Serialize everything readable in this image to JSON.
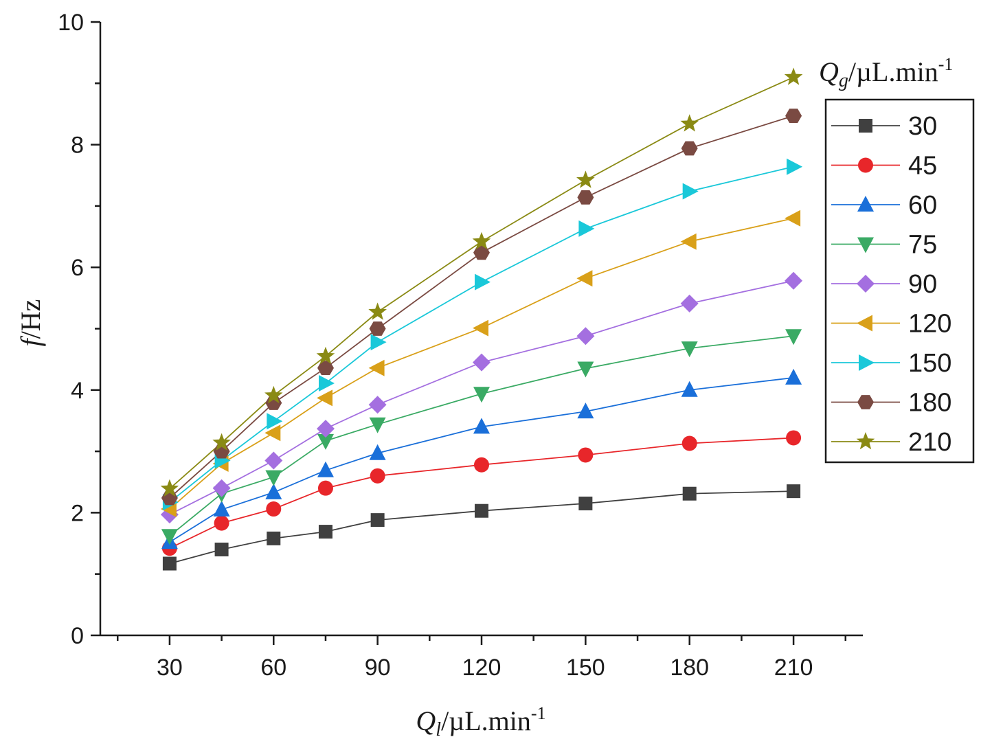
{
  "chart_data": {
    "type": "line",
    "title": "",
    "x": [
      30,
      45,
      60,
      75,
      90,
      120,
      150,
      180,
      210
    ],
    "xlim": [
      10,
      230
    ],
    "ylim": [
      0,
      10
    ],
    "x_ticks": [
      "30",
      "60",
      "90",
      "120",
      "150",
      "180",
      "210"
    ],
    "y_ticks": [
      "0",
      "2",
      "4",
      "6",
      "8",
      "10"
    ],
    "xlabel": {
      "main": "Q",
      "sub": "l",
      "unit": "/µL.min",
      "sup": "-1"
    },
    "ylabel": {
      "main": "f",
      "unit": "/Hz"
    },
    "legend": {
      "main": "Q",
      "sub": "g",
      "unit": "/µL.min",
      "sup": "-1",
      "position": "right"
    },
    "grid": false,
    "series": [
      {
        "name": "30",
        "marker": "square",
        "color": "#404040",
        "values": [
          1.17,
          1.4,
          1.58,
          1.69,
          1.88,
          2.03,
          2.15,
          2.31,
          2.35
        ]
      },
      {
        "name": "45",
        "marker": "circle",
        "color": "#e8262a",
        "values": [
          1.42,
          1.83,
          2.06,
          2.4,
          2.6,
          2.78,
          2.94,
          3.13,
          3.22
        ]
      },
      {
        "name": "60",
        "marker": "triangle-up",
        "color": "#1a6fd9",
        "values": [
          1.52,
          2.05,
          2.33,
          2.69,
          2.97,
          3.4,
          3.65,
          4.0,
          4.2
        ]
      },
      {
        "name": "75",
        "marker": "triangle-down",
        "color": "#3aaa64",
        "values": [
          1.62,
          2.31,
          2.58,
          3.17,
          3.44,
          3.94,
          4.35,
          4.68,
          4.88
        ]
      },
      {
        "name": "90",
        "marker": "diamond",
        "color": "#a46fe0",
        "values": [
          1.97,
          2.4,
          2.85,
          3.37,
          3.76,
          4.45,
          4.88,
          5.41,
          5.78
        ]
      },
      {
        "name": "120",
        "marker": "triangle-left",
        "color": "#d9a019",
        "values": [
          2.06,
          2.8,
          3.3,
          3.87,
          4.36,
          5.01,
          5.82,
          6.42,
          6.8
        ]
      },
      {
        "name": "150",
        "marker": "triangle-right",
        "color": "#1ac8d9",
        "values": [
          2.17,
          2.85,
          3.49,
          4.11,
          4.78,
          5.76,
          6.63,
          7.24,
          7.64
        ]
      },
      {
        "name": "180",
        "marker": "hexagon",
        "color": "#7a4a42",
        "values": [
          2.24,
          3.0,
          3.79,
          4.36,
          5.0,
          6.24,
          7.14,
          7.94,
          8.47
        ]
      },
      {
        "name": "210",
        "marker": "star",
        "color": "#8a8a14",
        "values": [
          2.39,
          3.14,
          3.91,
          4.55,
          5.27,
          6.42,
          7.42,
          8.34,
          9.1
        ]
      }
    ]
  }
}
